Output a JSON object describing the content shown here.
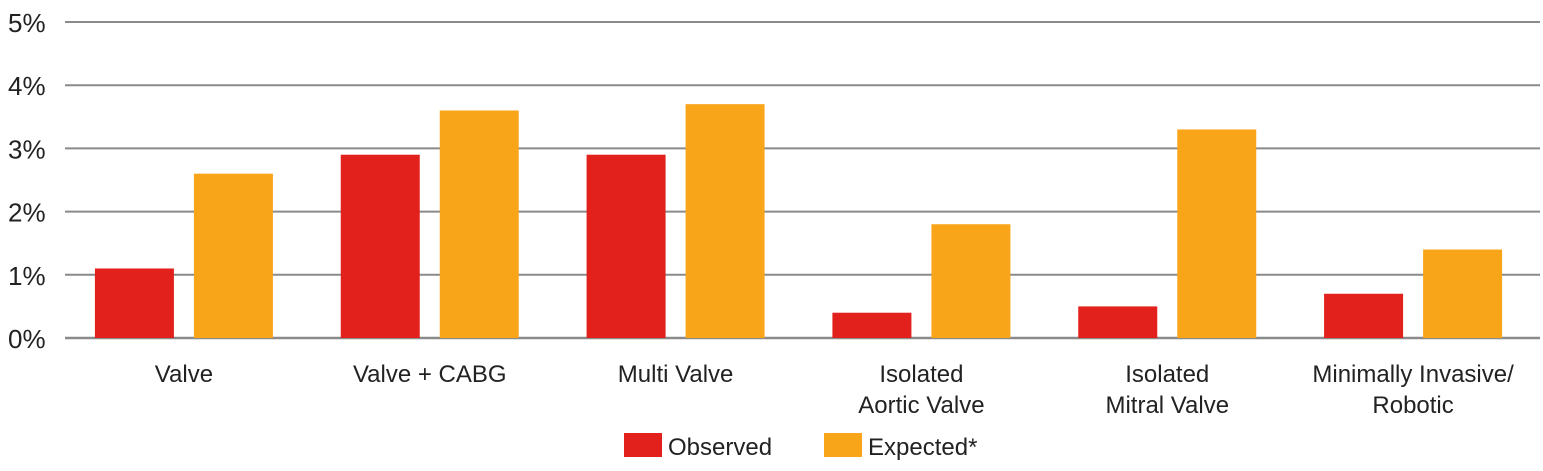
{
  "chart_data": {
    "type": "bar",
    "title": "",
    "xlabel": "",
    "ylabel": "",
    "ylim": [
      0,
      5
    ],
    "yticks": [
      "0%",
      "1%",
      "2%",
      "3%",
      "4%",
      "5%"
    ],
    "grid": true,
    "legend_position": "bottom-center",
    "categories": [
      [
        "Valve"
      ],
      [
        "Valve + CABG"
      ],
      [
        "Multi Valve"
      ],
      [
        "Isolated",
        "Aortic Valve"
      ],
      [
        "Isolated",
        "Mitral Valve"
      ],
      [
        "Minimally Invasive/",
        "Robotic"
      ]
    ],
    "series": [
      {
        "name": "Observed",
        "color": "#e2211c",
        "values": [
          1.1,
          2.9,
          2.9,
          0.4,
          0.5,
          0.7
        ]
      },
      {
        "name": "Expected*",
        "color": "#f9a51a",
        "values": [
          2.6,
          3.6,
          3.7,
          1.8,
          3.3,
          1.4
        ]
      }
    ]
  }
}
